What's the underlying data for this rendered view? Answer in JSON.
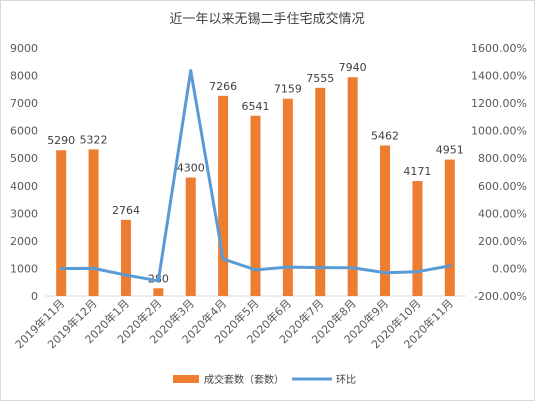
{
  "chart_data": {
    "type": "bar",
    "title": "近一年以来无锡二手住宅成交情况",
    "categories": [
      "2019年11月",
      "2019年12月",
      "2020年1月",
      "2020年2月",
      "2020年3月",
      "2020年4月",
      "2020年5月",
      "2020年6月",
      "2020年7月",
      "2020年8月",
      "2020年9月",
      "2020年10月",
      "2020年11月"
    ],
    "series": [
      {
        "name": "成交套数（套数）",
        "type": "bar",
        "axis": "left",
        "color": "#ed7d31",
        "values": [
          5290,
          5322,
          2764,
          280,
          4300,
          7266,
          6541,
          7159,
          7555,
          7940,
          5462,
          4171,
          4951
        ],
        "labels": [
          "5290",
          "5322",
          "2764",
          "280",
          "4300",
          "7266",
          "6541",
          "7159",
          "7555",
          "7940",
          "5462",
          "4171",
          "4951"
        ]
      },
      {
        "name": "环比",
        "type": "line",
        "axis": "right",
        "color": "#5b9bd5",
        "values": [
          0.0,
          0.6,
          -48.1,
          -89.9,
          1435.7,
          69.0,
          -10.0,
          9.4,
          5.5,
          5.1,
          -31.2,
          -23.6,
          18.7
        ]
      }
    ],
    "y_left": {
      "ylim": [
        0,
        9000
      ],
      "ticks": [
        "0",
        "1000",
        "2000",
        "3000",
        "4000",
        "5000",
        "6000",
        "7000",
        "8000",
        "9000"
      ]
    },
    "y_right": {
      "ylim": [
        -200,
        1600
      ],
      "ticks": [
        "-200.00%",
        "0.00%",
        "200.00%",
        "400.00%",
        "600.00%",
        "800.00%",
        "1000.00%",
        "1200.00%",
        "1400.00%",
        "1600.00%"
      ]
    },
    "grid": false,
    "legend": "bottom"
  }
}
